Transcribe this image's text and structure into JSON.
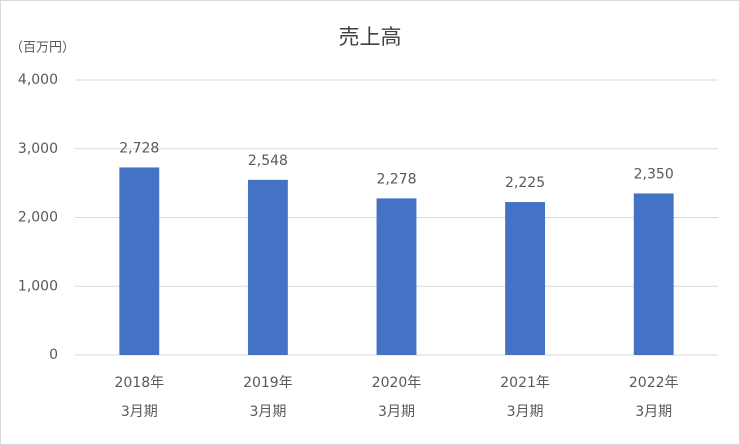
{
  "chart_data": {
    "type": "bar",
    "title": "売上高",
    "y_axis_label": "（百万円）",
    "categories": [
      [
        "2018年",
        "3月期"
      ],
      [
        "2019年",
        "3月期"
      ],
      [
        "2020年",
        "3月期"
      ],
      [
        "2021年",
        "3月期"
      ],
      [
        "2022年",
        "3月期"
      ]
    ],
    "values": [
      2728,
      2548,
      2278,
      2225,
      2350
    ],
    "value_labels": [
      "2,728",
      "2,548",
      "2,278",
      "2,225",
      "2,350"
    ],
    "color": "#4472c4",
    "ylim": [
      0,
      4000
    ],
    "yticks": [
      0,
      {
        "value": 1000,
        "label": "1,000"
      },
      {
        "value": 2000,
        "label": "2,000"
      },
      {
        "value": 3000,
        "label": "3,000"
      },
      {
        "value": 4000,
        "label": "4,000"
      }
    ],
    "grid": true
  }
}
